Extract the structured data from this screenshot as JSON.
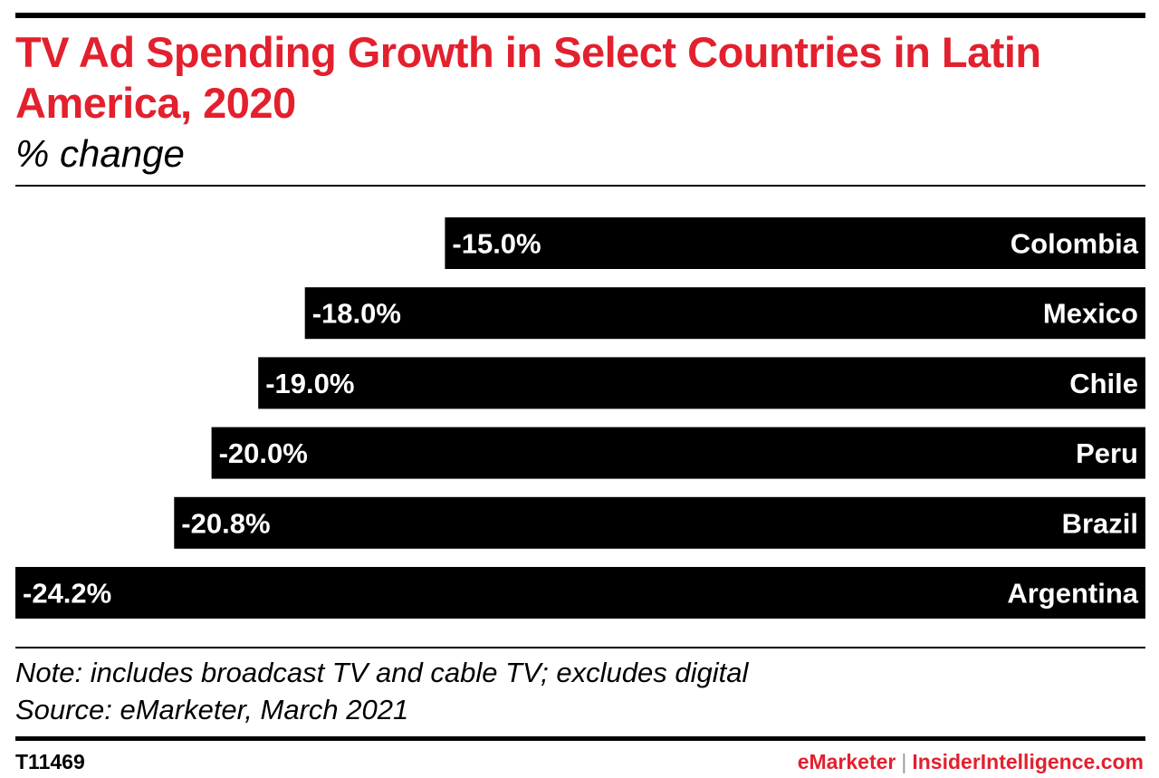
{
  "title": "TV Ad Spending Growth in Select Countries in Latin America, 2020",
  "subtitle": "% change",
  "chart_data": {
    "type": "bar",
    "orientation": "horizontal",
    "title": "TV Ad Spending Growth in Select Countries in Latin America, 2020",
    "subtitle": "% change",
    "categories": [
      "Colombia",
      "Mexico",
      "Chile",
      "Peru",
      "Brazil",
      "Argentina"
    ],
    "values": [
      -15.0,
      -18.0,
      -19.0,
      -20.0,
      -20.8,
      -24.2
    ],
    "value_labels": [
      "-15.0%",
      "-18.0%",
      "-19.0%",
      "-20.0%",
      "-20.8%",
      "-24.2%"
    ],
    "unit": "%",
    "xlim": [
      -24.2,
      0
    ],
    "bar_color": "#000000",
    "label_color": "#ffffff",
    "grid": false,
    "legend": "none"
  },
  "note": "Note: includes broadcast TV and cable TV; excludes digital",
  "source": "Source: eMarketer, March 2021",
  "footer": {
    "chart_id": "T11469",
    "brand_left": "eMarketer",
    "separator": "|",
    "brand_right": "InsiderIntelligence.com"
  },
  "colors": {
    "accent": "#e3202e",
    "bar": "#000000",
    "text": "#000000",
    "background": "#ffffff"
  }
}
